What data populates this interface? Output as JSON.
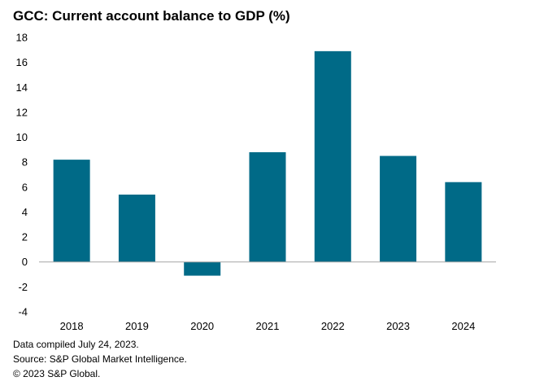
{
  "chart_data": {
    "type": "bar",
    "title": "GCC: Current account balance to GDP (%)",
    "xlabel": "",
    "ylabel": "",
    "categories": [
      "2018",
      "2019",
      "2020",
      "2021",
      "2022",
      "2023",
      "2024"
    ],
    "values": [
      8.2,
      5.4,
      -1.1,
      8.8,
      16.9,
      8.5,
      6.4
    ],
    "ylim": [
      -4,
      18
    ],
    "yticks": [
      -4,
      -2,
      0,
      2,
      4,
      6,
      8,
      10,
      12,
      14,
      16,
      18
    ],
    "grid": false,
    "legend": false,
    "bar_color": "#006a87",
    "axis_color": "#a6a6a6"
  },
  "footnotes": {
    "compiled": "Data compiled July 24, 2023.",
    "source": "Source: S&P Global Market Intelligence.",
    "copyright": "© 2023 S&P Global."
  }
}
